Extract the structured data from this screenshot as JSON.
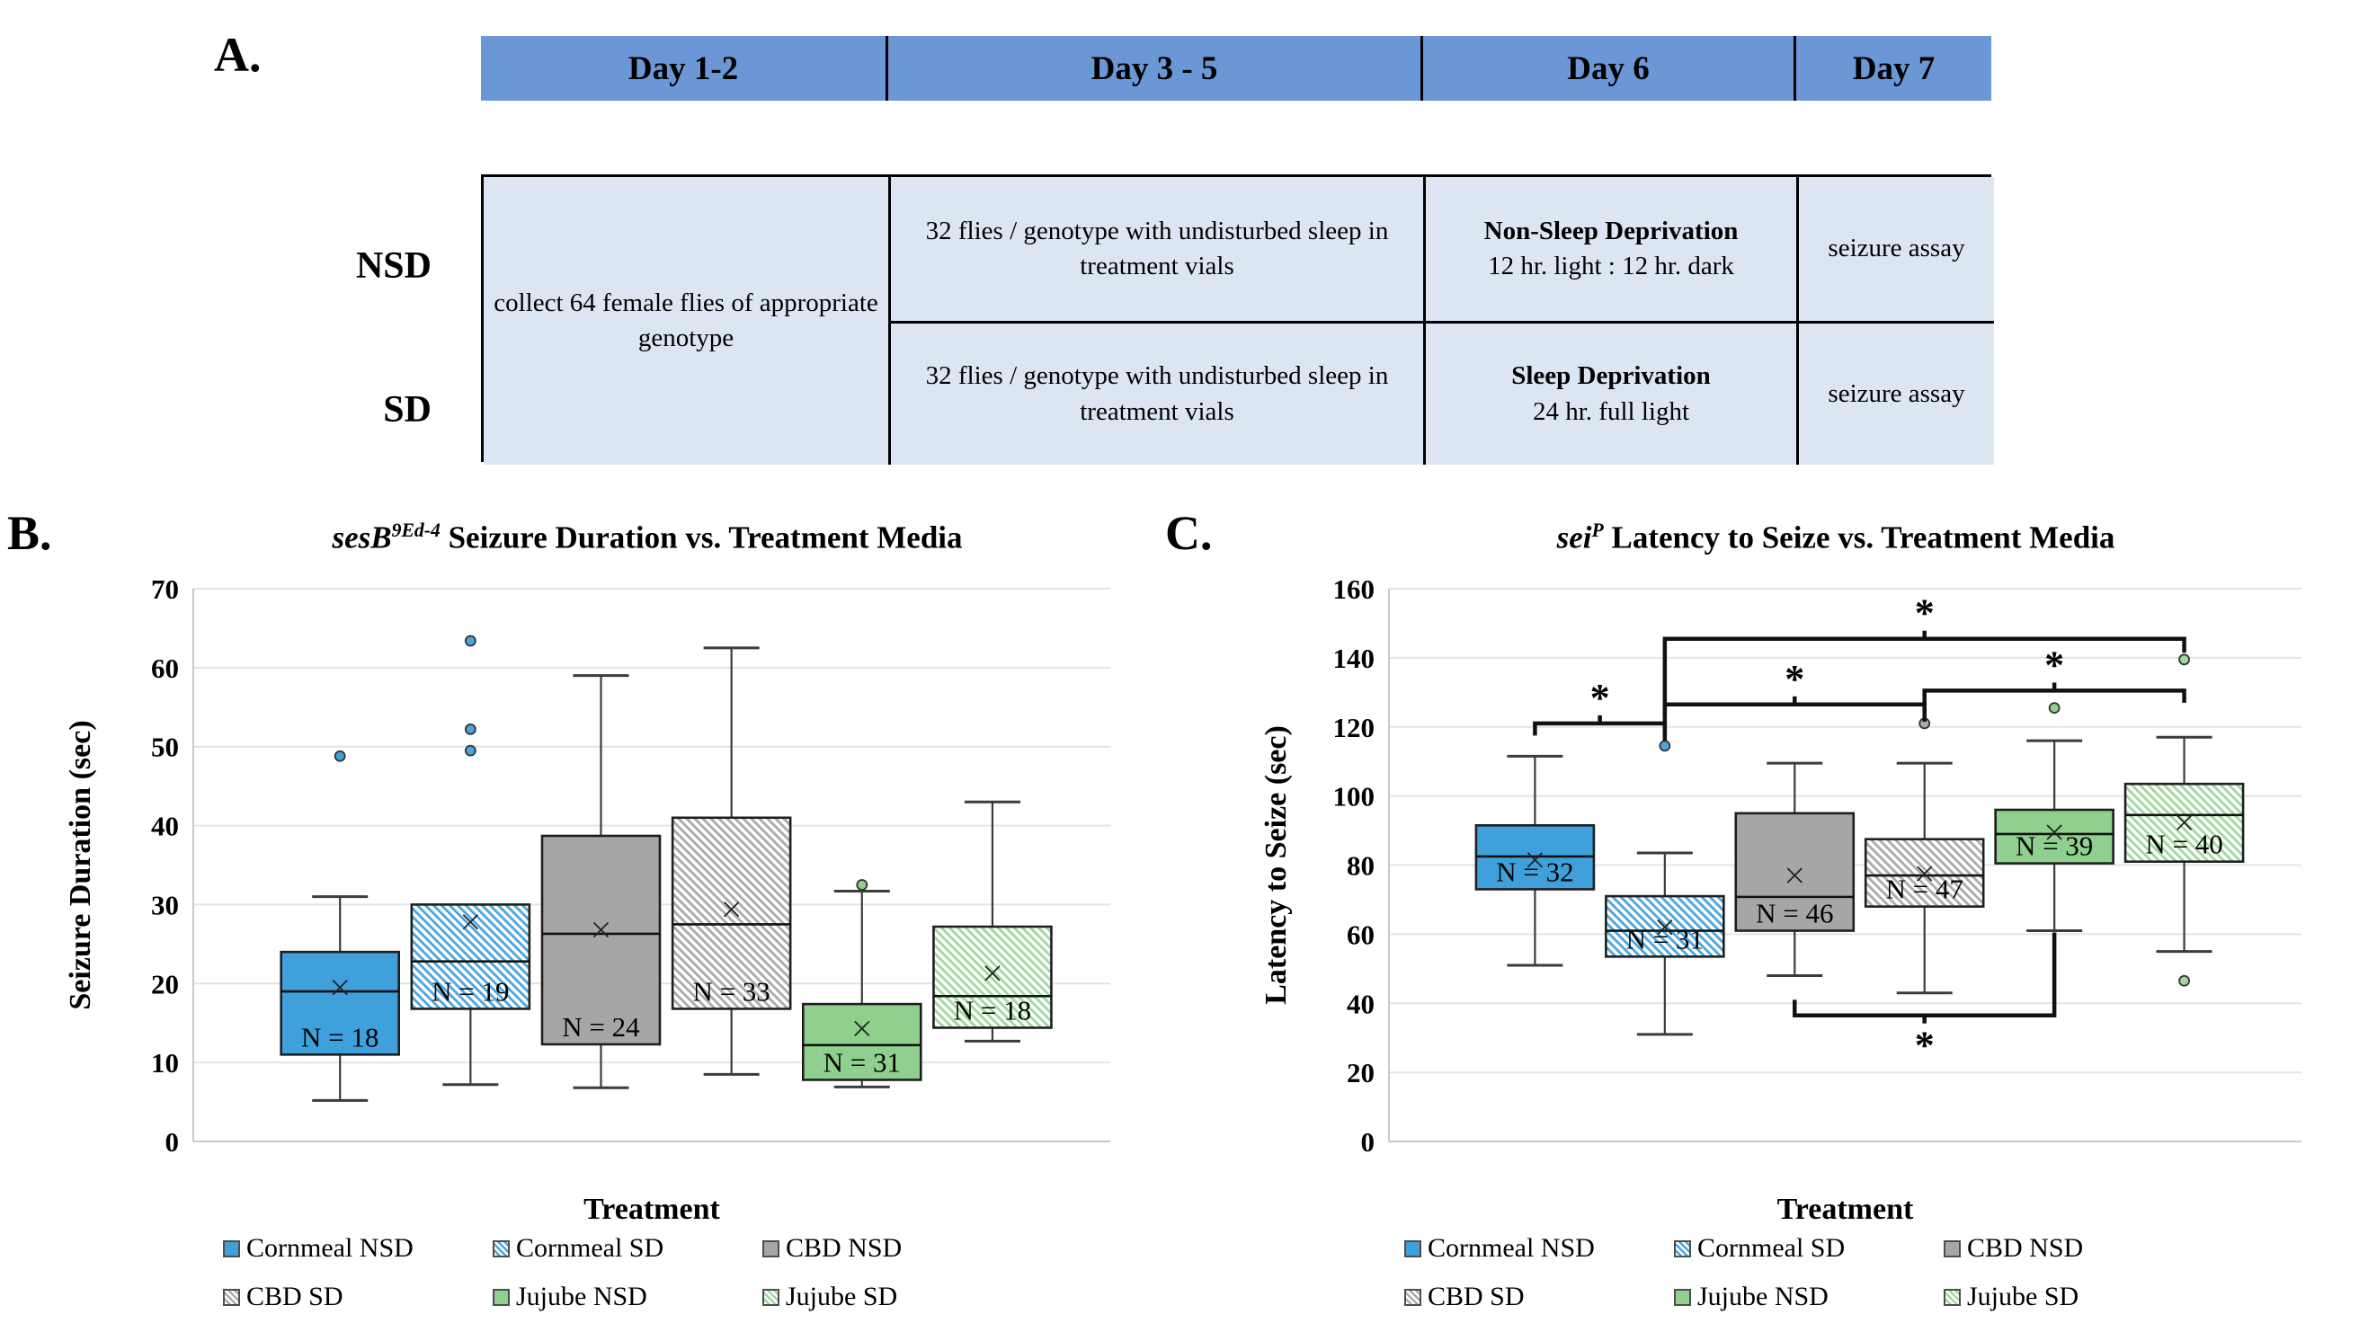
{
  "panel_a": {
    "label": "A.",
    "header": [
      "Day 1-2",
      "Day 3 - 5",
      "Day 6",
      "Day 7"
    ],
    "row_labels": [
      "NSD",
      "SD"
    ],
    "merged_cell": "collect 64 female flies of appropriate genotype",
    "rows": [
      {
        "day35": "32 flies / genotype with undisturbed sleep in treatment vials",
        "day6_title": "Non-Sleep Deprivation",
        "day6_sub": "12 hr. light : 12 hr. dark",
        "day7": "seizure assay"
      },
      {
        "day35": "32 flies / genotype with undisturbed sleep in treatment vials",
        "day6_title": "Sleep Deprivation",
        "day6_sub": "24 hr. full light",
        "day7": "seizure assay"
      }
    ],
    "colors": {
      "header_bg": "#6b97d6",
      "cell_bg": "#dce6f3",
      "border": "#000000"
    }
  },
  "chart_data": [
    {
      "type": "box",
      "panel_label": "B.",
      "title": {
        "em": "sesB",
        "sup": "9Ed-4",
        "rest": "Seizure Duration vs. Treatment Media"
      },
      "xlabel": "Treatment",
      "ylabel": "Seizure Duration (sec)",
      "ylim": [
        0,
        70
      ],
      "ytick_step": 10,
      "grid": true,
      "legend_position": "bottom",
      "series": [
        {
          "label": "Cornmeal NSD",
          "style": "solid",
          "color": "#3fa0db",
          "n_label": "N = 18",
          "low": 5.2,
          "q1": 11,
          "median": 19,
          "mean": 19.5,
          "q3": 24,
          "high": 31,
          "outliers": [
            48.8
          ]
        },
        {
          "label": "Cornmeal SD",
          "style": "hatch",
          "color": "#4aa5de",
          "n_label": "N = 19",
          "low": 7.2,
          "q1": 16.8,
          "median": 22.8,
          "mean": 27.8,
          "q3": 30,
          "high": null,
          "outliers": [
            49.5,
            52.2,
            63.4
          ]
        },
        {
          "label": "CBD NSD",
          "style": "solid",
          "color": "#a6a6a6",
          "n_label": "N = 24",
          "low": 6.8,
          "q1": 12.3,
          "median": 26.3,
          "mean": 26.8,
          "q3": 38.7,
          "high": 59,
          "outliers": []
        },
        {
          "label": "CBD SD",
          "style": "hatch",
          "color": "#ababab",
          "n_label": "N = 33",
          "low": 8.5,
          "q1": 16.8,
          "median": 27.5,
          "mean": 29.4,
          "q3": 41,
          "high": 62.5,
          "outliers": []
        },
        {
          "label": "Jujube NSD",
          "style": "solid",
          "color": "#90d08e",
          "n_label": "N = 31",
          "low": 6.9,
          "q1": 7.8,
          "median": 12.2,
          "mean": 14.3,
          "q3": 17.4,
          "high": 31.7,
          "outliers": [
            32.5
          ]
        },
        {
          "label": "Jujube SD",
          "style": "hatch",
          "color": "#9fd89d",
          "n_label": "N = 18",
          "low": 12.7,
          "q1": 14.4,
          "median": 18.4,
          "mean": 21.3,
          "q3": 27.2,
          "high": 43,
          "outliers": []
        }
      ],
      "brackets": []
    },
    {
      "type": "box",
      "panel_label": "C.",
      "title": {
        "em": "sei",
        "sup": "P",
        "rest": "Latency to Seize vs. Treatment Media"
      },
      "xlabel": "Treatment",
      "ylabel": "Latency to Seize (sec)",
      "ylim": [
        0,
        160
      ],
      "ytick_step": 20,
      "grid": true,
      "legend_position": "bottom",
      "series": [
        {
          "label": "Cornmeal NSD",
          "style": "solid",
          "color": "#3fa0db",
          "n_label": "N = 32",
          "low": 51,
          "q1": 73,
          "median": 82.5,
          "mean": 81.5,
          "q3": 91.5,
          "high": 111.5,
          "outliers": []
        },
        {
          "label": "Cornmeal SD",
          "style": "hatch",
          "color": "#4aa5de",
          "n_label": "N = 31",
          "low": 31,
          "q1": 53.5,
          "median": 61,
          "mean": 62,
          "q3": 71,
          "high": 83.5,
          "outliers": [
            114.5
          ]
        },
        {
          "label": "CBD NSD",
          "style": "solid",
          "color": "#a6a6a6",
          "n_label": "N = 46",
          "low": 48,
          "q1": 61,
          "median": 70.8,
          "mean": 77,
          "q3": 95,
          "high": 109.5,
          "outliers": []
        },
        {
          "label": "CBD SD",
          "style": "hatch",
          "color": "#ababab",
          "n_label": "N = 47",
          "low": 43,
          "q1": 68,
          "median": 77,
          "mean": 77.5,
          "q3": 87.5,
          "high": 109.5,
          "outliers": [
            121
          ]
        },
        {
          "label": "Jujube NSD",
          "style": "solid",
          "color": "#90d08e",
          "n_label": "N = 39",
          "low": 61,
          "q1": 80.5,
          "median": 89,
          "mean": 89.5,
          "q3": 96,
          "high": 116,
          "outliers": [
            125.5
          ]
        },
        {
          "label": "Jujube SD",
          "style": "hatch",
          "color": "#9fd89d",
          "n_label": "N = 40",
          "low": 55,
          "q1": 81,
          "median": 94.5,
          "mean": 92.3,
          "q3": 103.5,
          "high": 117,
          "outliers": [
            139.5,
            46.5
          ]
        }
      ],
      "brackets": [
        {
          "from": 0,
          "to": 1,
          "y": 121,
          "tail_from": 3.5,
          "tail_to": 5,
          "star": "above"
        },
        {
          "from": 1,
          "to": 3,
          "y": 126.5,
          "tail_from": 3.5,
          "tail_to": 5,
          "star": "above"
        },
        {
          "from": 1,
          "to": 5,
          "y": 145.5,
          "tail_from": 28,
          "tail_to": 4,
          "star": "above"
        },
        {
          "from": 3,
          "to": 5,
          "y": 130.5,
          "tail_from": 6,
          "tail_to": 3.5,
          "star": "above"
        },
        {
          "from": 2,
          "to": 4,
          "y": 36.5,
          "tail_from": 4.5,
          "tail_to": 24,
          "star": "below"
        }
      ]
    }
  ],
  "sig_star": "*",
  "styles": {
    "grid_color": "#e4e4e4",
    "axis_color": "#c9c9c9",
    "box_border": "#1f1f1f",
    "whisker": "#3b3b3b"
  }
}
